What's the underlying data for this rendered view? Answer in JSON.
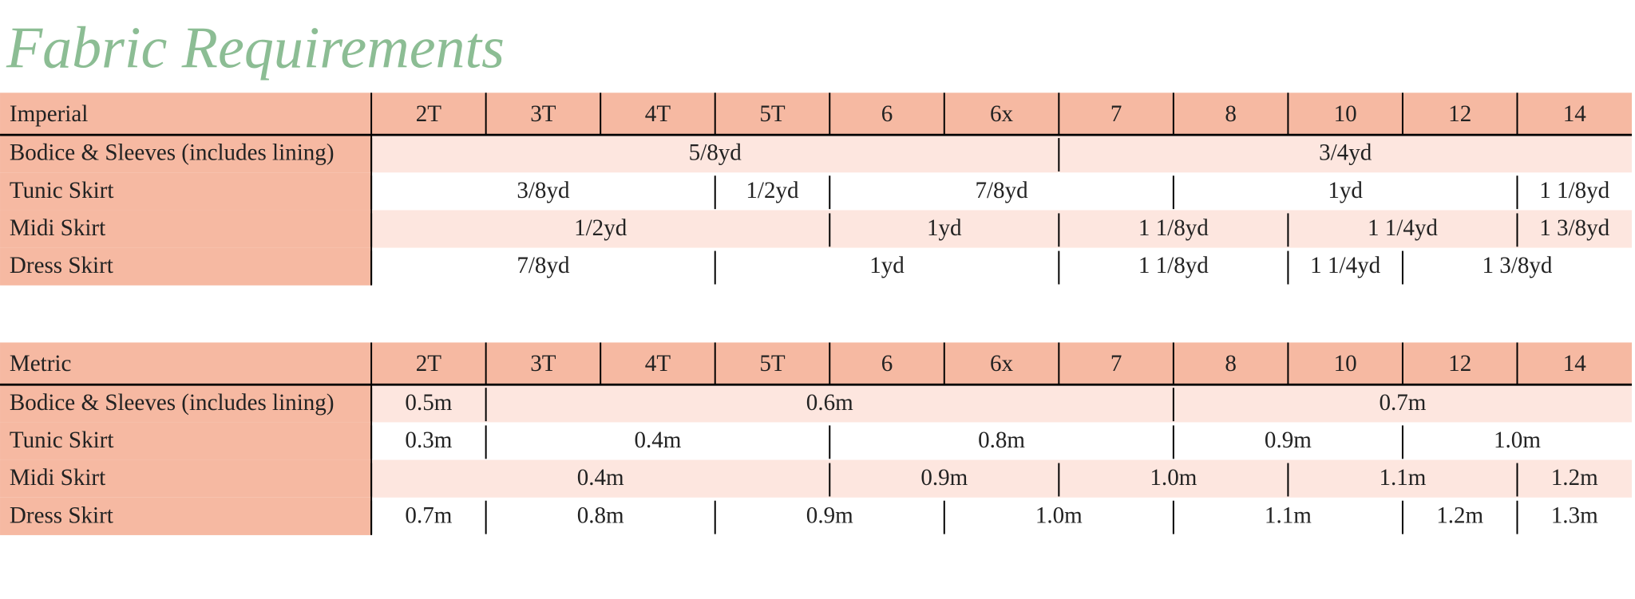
{
  "title": "Fabric Requirements",
  "tables": [
    {
      "header": [
        "Imperial",
        "2T",
        "3T",
        "4T",
        "5T",
        "6",
        "6x",
        "7",
        "8",
        "10",
        "12",
        "14"
      ],
      "rows": [
        {
          "label": "Bodice & Sleeves (includes lining)",
          "cells": [
            "5/8yd",
            "3/4yd"
          ]
        },
        {
          "label": "Tunic Skirt",
          "cells": [
            "3/8yd",
            "1/2yd",
            "7/8yd",
            "1yd",
            "1 1/8yd"
          ]
        },
        {
          "label": "Midi Skirt",
          "cells": [
            "1/2yd",
            "1yd",
            "1 1/8yd",
            "1 1/4yd",
            "1 3/8yd"
          ]
        },
        {
          "label": "Dress Skirt",
          "cells": [
            "7/8yd",
            "1yd",
            "1 1/8yd",
            "1 1/4yd",
            "1 3/8yd"
          ]
        }
      ]
    },
    {
      "header": [
        "Metric",
        "2T",
        "3T",
        "4T",
        "5T",
        "6",
        "6x",
        "7",
        "8",
        "10",
        "12",
        "14"
      ],
      "rows": [
        {
          "label": "Bodice & Sleeves (includes lining)",
          "cells": [
            "0.5m",
            "0.6m",
            "0.7m"
          ]
        },
        {
          "label": "Tunic Skirt",
          "cells": [
            "0.3m",
            "0.4m",
            "0.8m",
            "0.9m",
            "1.0m"
          ]
        },
        {
          "label": "Midi Skirt",
          "cells": [
            "0.4m",
            "0.9m",
            "1.0m",
            "1.1m",
            "1.2m"
          ]
        },
        {
          "label": "Dress Skirt",
          "cells": [
            "0.7m",
            "0.8m",
            "0.9m",
            "1.0m",
            "1.1m",
            "1.2m",
            "1.3m"
          ]
        }
      ]
    }
  ]
}
